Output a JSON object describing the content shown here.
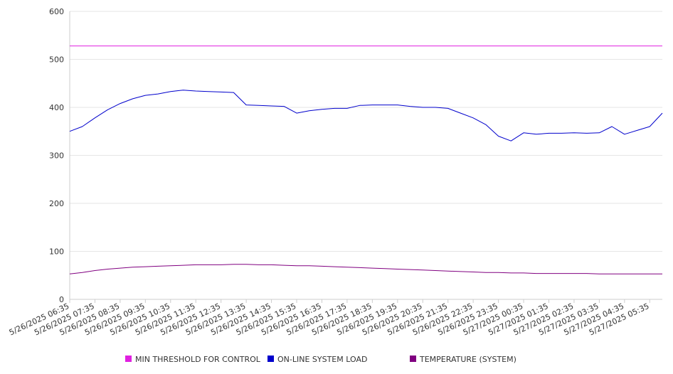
{
  "chart_data": {
    "type": "line",
    "title": "",
    "xlabel": "",
    "ylabel": "",
    "ylim": [
      0,
      600
    ],
    "yticks": [
      0,
      100,
      200,
      300,
      400,
      500,
      600
    ],
    "grid": true,
    "legend_position": "bottom",
    "x_tick_labels": [
      "5/26/2025 06:35",
      "5/26/2025 07:35",
      "5/26/2025 08:35",
      "5/26/2025 09:35",
      "5/26/2025 10:35",
      "5/26/2025 11:35",
      "5/26/2025 12:35",
      "5/26/2025 13:35",
      "5/26/2025 14:35",
      "5/26/2025 15:35",
      "5/26/2025 16:35",
      "5/26/2025 17:35",
      "5/26/2025 18:35",
      "5/26/2025 19:35",
      "5/26/2025 20:35",
      "5/26/2025 21:35",
      "5/26/2025 22:35",
      "5/26/2025 23:35",
      "5/27/2025 00:35",
      "5/27/2025 01:35",
      "5/27/2025 02:35",
      "5/27/2025 03:35",
      "5/27/2025 04:35",
      "5/27/2025 05:35"
    ],
    "x": [
      "5/26/2025 06:35",
      "5/26/2025 07:05",
      "5/26/2025 07:35",
      "5/26/2025 08:05",
      "5/26/2025 08:35",
      "5/26/2025 09:05",
      "5/26/2025 09:35",
      "5/26/2025 10:05",
      "5/26/2025 10:35",
      "5/26/2025 11:05",
      "5/26/2025 11:35",
      "5/26/2025 12:05",
      "5/26/2025 12:35",
      "5/26/2025 13:05",
      "5/26/2025 13:35",
      "5/26/2025 14:05",
      "5/26/2025 14:35",
      "5/26/2025 15:05",
      "5/26/2025 15:35",
      "5/26/2025 16:05",
      "5/26/2025 16:35",
      "5/26/2025 17:05",
      "5/26/2025 17:35",
      "5/26/2025 18:05",
      "5/26/2025 18:35",
      "5/26/2025 19:05",
      "5/26/2025 19:35",
      "5/26/2025 20:05",
      "5/26/2025 20:35",
      "5/26/2025 21:05",
      "5/26/2025 21:35",
      "5/26/2025 22:05",
      "5/26/2025 22:35",
      "5/26/2025 23:05",
      "5/26/2025 23:35",
      "5/27/2025 00:05",
      "5/27/2025 00:35",
      "5/27/2025 01:05",
      "5/27/2025 01:35",
      "5/27/2025 02:05",
      "5/27/2025 02:35",
      "5/27/2025 03:05",
      "5/27/2025 03:35",
      "5/27/2025 04:05",
      "5/27/2025 04:35",
      "5/27/2025 05:05",
      "5/27/2025 05:35",
      "5/27/2025 06:05"
    ],
    "series": [
      {
        "name": "MIN THRESHOLD FOR CONTROL",
        "color": "#e020e0",
        "values": [
          528,
          528,
          528,
          528,
          528,
          528,
          528,
          528,
          528,
          528,
          528,
          528,
          528,
          528,
          528,
          528,
          528,
          528,
          528,
          528,
          528,
          528,
          528,
          528,
          528,
          528,
          528,
          528,
          528,
          528,
          528,
          528,
          528,
          528,
          528,
          528,
          528,
          528,
          528,
          528,
          528,
          528,
          528,
          528,
          528,
          528,
          528,
          528
        ]
      },
      {
        "name": "ON-LINE SYSTEM LOAD",
        "color": "#0000cc",
        "values": [
          350,
          360,
          378,
          395,
          408,
          418,
          425,
          428,
          433,
          436,
          434,
          433,
          432,
          431,
          405,
          404,
          403,
          402,
          388,
          393,
          396,
          398,
          398,
          404,
          405,
          405,
          405,
          402,
          400,
          400,
          398,
          388,
          378,
          364,
          340,
          330,
          347,
          344,
          346,
          346,
          347,
          346,
          347,
          360,
          344,
          352,
          360,
          388
        ]
      },
      {
        "name": "TEMPERATURE (SYSTEM)",
        "color": "#800080",
        "values": [
          53,
          56,
          60,
          63,
          65,
          67,
          68,
          69,
          70,
          71,
          72,
          72,
          72,
          73,
          73,
          72,
          72,
          71,
          70,
          70,
          69,
          68,
          67,
          66,
          65,
          64,
          63,
          62,
          61,
          60,
          59,
          58,
          57,
          56,
          56,
          55,
          55,
          54,
          54,
          54,
          54,
          54,
          53,
          53,
          53,
          53,
          53,
          53
        ]
      }
    ]
  }
}
